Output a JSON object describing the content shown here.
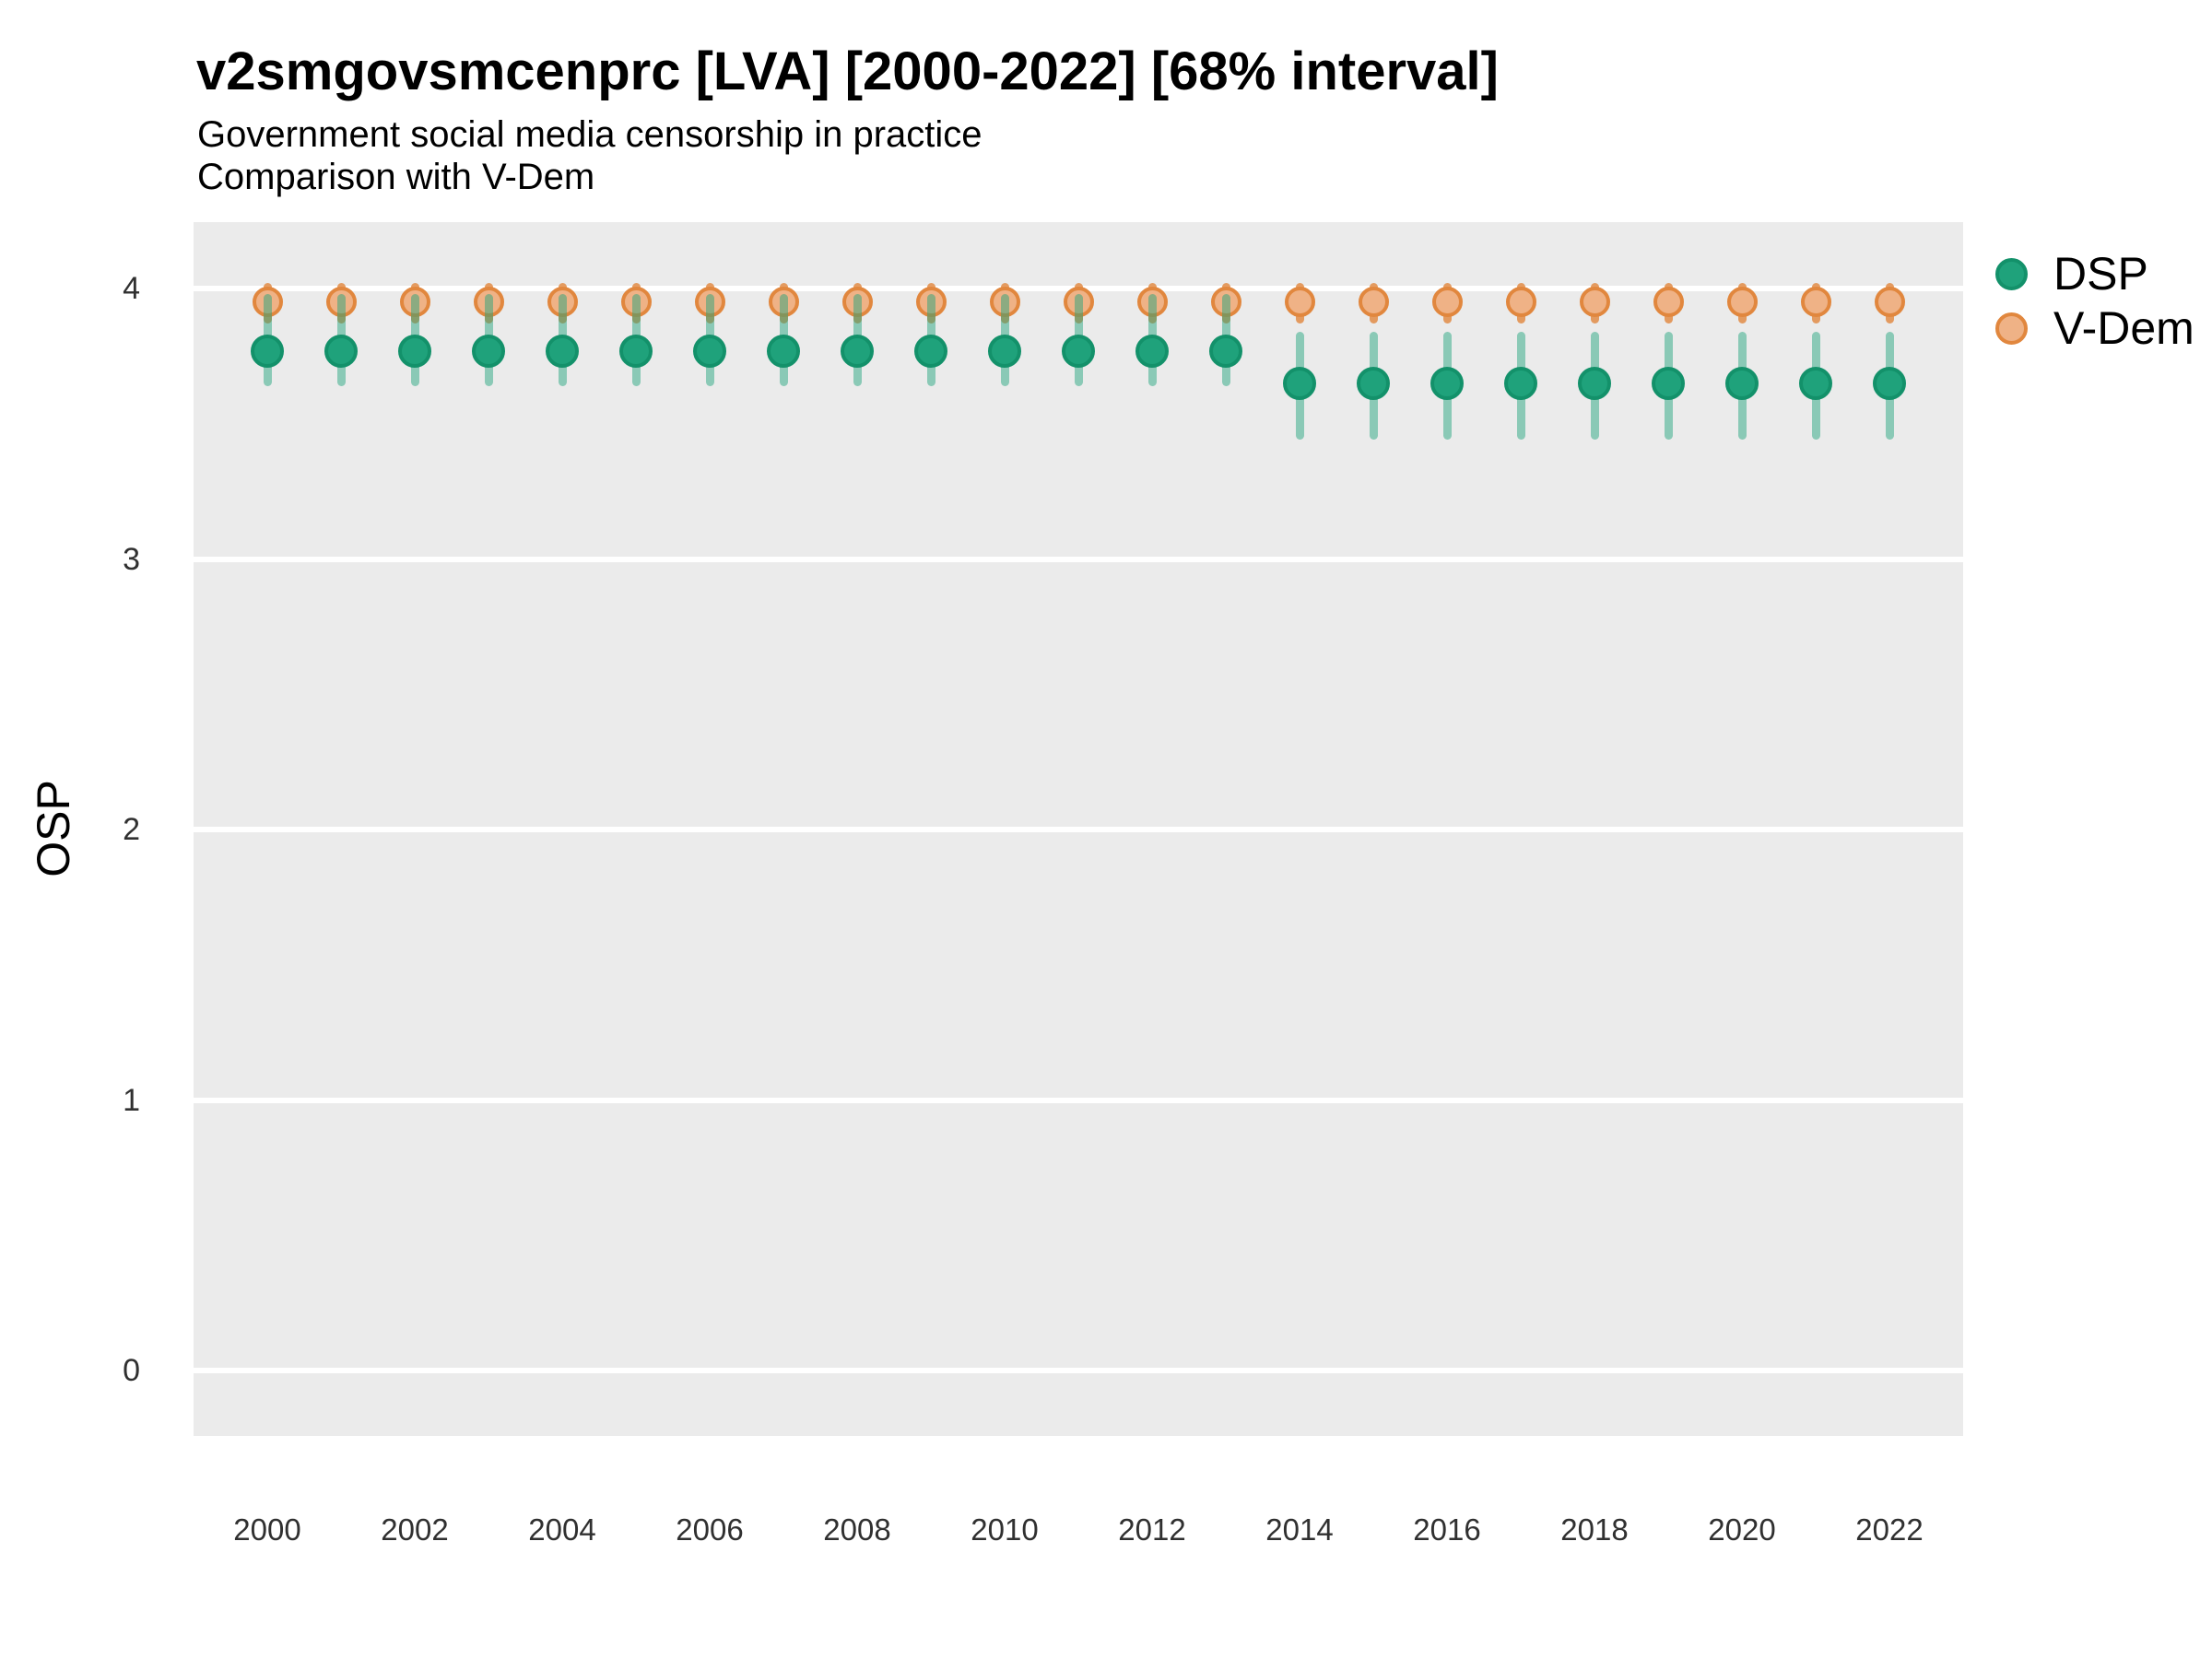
{
  "header": {
    "title": "v2smgovsmcenprc [LVA] [2000-2022] [68% interval]",
    "subtitle1": "Government social media censorship in practice",
    "subtitle2": "Comparison with V-Dem"
  },
  "y_axis": {
    "label": "OSP",
    "ticks": [
      {
        "label": "0",
        "value": 0
      },
      {
        "label": "1",
        "value": 1
      },
      {
        "label": "2",
        "value": 2
      },
      {
        "label": "3",
        "value": 3
      },
      {
        "label": "4",
        "value": 4
      }
    ]
  },
  "x_axis": {
    "ticks": [
      {
        "label": "2000",
        "year": 2000
      },
      {
        "label": "2002",
        "year": 2002
      },
      {
        "label": "2004",
        "year": 2004
      },
      {
        "label": "2006",
        "year": 2006
      },
      {
        "label": "2008",
        "year": 2008
      },
      {
        "label": "2010",
        "year": 2010
      },
      {
        "label": "2012",
        "year": 2012
      },
      {
        "label": "2014",
        "year": 2014
      },
      {
        "label": "2016",
        "year": 2016
      },
      {
        "label": "2018",
        "year": 2018
      },
      {
        "label": "2020",
        "year": 2020
      },
      {
        "label": "2022",
        "year": 2022
      }
    ]
  },
  "legend": {
    "items": [
      {
        "id": "dsp",
        "label": "DSP"
      },
      {
        "id": "vdem",
        "label": "V-Dem"
      }
    ],
    "position": "right"
  },
  "colors": {
    "dsp_fill": "#1FA27B",
    "dsp_stroke": "#13916A",
    "dsp_interval": "rgba(31,162,123,0.48)",
    "vdem_fill": "#EFB286",
    "vdem_stroke": "#E1873E",
    "vdem_interval": "rgba(225,134,60,0.80)",
    "panel_background": "#EBEBEB",
    "gridline": "#FFFFFF"
  },
  "chart_data": {
    "type": "pointrange",
    "title": "v2smgovsmcenprc [LVA] [2000-2022] [68% interval]",
    "xlabel": "",
    "ylabel": "OSP",
    "ylim": [
      -0.24,
      4.25
    ],
    "grid": "major-horizontal-only",
    "legend_position": "right",
    "interval_level": "68%",
    "x": [
      2000,
      2001,
      2002,
      2003,
      2004,
      2005,
      2006,
      2007,
      2008,
      2009,
      2010,
      2011,
      2012,
      2013,
      2014,
      2015,
      2016,
      2017,
      2018,
      2019,
      2020,
      2021,
      2022
    ],
    "series": [
      {
        "name": "DSP",
        "points": [
          3.77,
          3.77,
          3.77,
          3.77,
          3.77,
          3.77,
          3.77,
          3.77,
          3.77,
          3.77,
          3.77,
          3.77,
          3.77,
          3.77,
          3.65,
          3.65,
          3.65,
          3.65,
          3.65,
          3.65,
          3.65,
          3.65,
          3.65
        ],
        "lo": [
          3.64,
          3.64,
          3.64,
          3.64,
          3.64,
          3.64,
          3.64,
          3.64,
          3.64,
          3.64,
          3.64,
          3.64,
          3.64,
          3.64,
          3.44,
          3.44,
          3.44,
          3.44,
          3.44,
          3.44,
          3.44,
          3.44,
          3.44
        ],
        "hi": [
          3.98,
          3.98,
          3.98,
          3.98,
          3.98,
          3.98,
          3.98,
          3.98,
          3.98,
          3.98,
          3.98,
          3.98,
          3.98,
          3.98,
          3.84,
          3.84,
          3.84,
          3.84,
          3.84,
          3.84,
          3.84,
          3.84,
          3.84
        ]
      },
      {
        "name": "V-Dem",
        "points": [
          3.95,
          3.95,
          3.95,
          3.95,
          3.95,
          3.95,
          3.95,
          3.95,
          3.95,
          3.95,
          3.95,
          3.95,
          3.95,
          3.95,
          3.95,
          3.95,
          3.95,
          3.95,
          3.95,
          3.95,
          3.95,
          3.95,
          3.95
        ],
        "lo": [
          3.87,
          3.87,
          3.87,
          3.87,
          3.87,
          3.87,
          3.87,
          3.87,
          3.87,
          3.87,
          3.87,
          3.87,
          3.87,
          3.87,
          3.87,
          3.87,
          3.87,
          3.87,
          3.87,
          3.87,
          3.87,
          3.87,
          3.87
        ],
        "hi": [
          4.02,
          4.02,
          4.02,
          4.02,
          4.02,
          4.02,
          4.02,
          4.02,
          4.02,
          4.02,
          4.02,
          4.02,
          4.02,
          4.02,
          4.02,
          4.02,
          4.02,
          4.02,
          4.02,
          4.02,
          4.02,
          4.02,
          4.02
        ]
      }
    ]
  }
}
